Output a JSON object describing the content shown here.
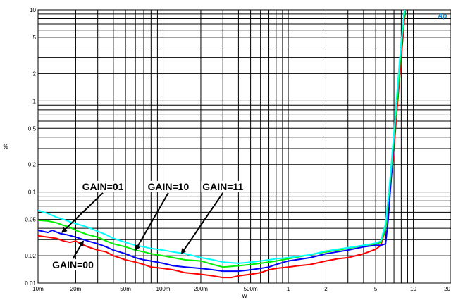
{
  "chart_data": {
    "type": "line",
    "xlabel": "W",
    "ylabel": "%",
    "x_scale": "log",
    "y_scale": "log",
    "xlim": [
      0.01,
      20
    ],
    "ylim": [
      0.01,
      10
    ],
    "grid": true,
    "x_ticks": [
      {
        "value": 0.01,
        "label": "10m"
      },
      {
        "value": 0.02,
        "label": "20m"
      },
      {
        "value": 0.05,
        "label": "50m"
      },
      {
        "value": 0.1,
        "label": "100m"
      },
      {
        "value": 0.2,
        "label": "200m"
      },
      {
        "value": 0.5,
        "label": "500m"
      },
      {
        "value": 1,
        "label": "1"
      },
      {
        "value": 2,
        "label": "2"
      },
      {
        "value": 5,
        "label": "5"
      },
      {
        "value": 10,
        "label": "10"
      },
      {
        "value": 20,
        "label": "20"
      }
    ],
    "y_ticks": [
      {
        "value": 0.01,
        "label": "0.01"
      },
      {
        "value": 0.02,
        "label": "0.02"
      },
      {
        "value": 0.05,
        "label": "0.05"
      },
      {
        "value": 0.1,
        "label": "0.1"
      },
      {
        "value": 0.2,
        "label": "0.2"
      },
      {
        "value": 0.5,
        "label": "0.5"
      },
      {
        "value": 1,
        "label": "1"
      },
      {
        "value": 2,
        "label": "2"
      },
      {
        "value": 5,
        "label": "5"
      },
      {
        "value": 10,
        "label": "10"
      }
    ],
    "series": [
      {
        "name": "GAIN=00",
        "color": "#ff0000",
        "points": [
          [
            0.01,
            0.033
          ],
          [
            0.012,
            0.032
          ],
          [
            0.014,
            0.031
          ],
          [
            0.016,
            0.029
          ],
          [
            0.018,
            0.028
          ],
          [
            0.02,
            0.029
          ],
          [
            0.022,
            0.027
          ],
          [
            0.025,
            0.025
          ],
          [
            0.03,
            0.023
          ],
          [
            0.035,
            0.022
          ],
          [
            0.04,
            0.02
          ],
          [
            0.05,
            0.018
          ],
          [
            0.06,
            0.017
          ],
          [
            0.07,
            0.016
          ],
          [
            0.08,
            0.015
          ],
          [
            0.1,
            0.0145
          ],
          [
            0.12,
            0.014
          ],
          [
            0.15,
            0.013
          ],
          [
            0.2,
            0.0125
          ],
          [
            0.25,
            0.012
          ],
          [
            0.3,
            0.0115
          ],
          [
            0.35,
            0.0115
          ],
          [
            0.4,
            0.012
          ],
          [
            0.5,
            0.0125
          ],
          [
            0.6,
            0.013
          ],
          [
            0.7,
            0.014
          ],
          [
            0.8,
            0.0145
          ],
          [
            1,
            0.015
          ],
          [
            1.2,
            0.0155
          ],
          [
            1.5,
            0.016
          ],
          [
            2,
            0.0175
          ],
          [
            2.5,
            0.0185
          ],
          [
            3,
            0.019
          ],
          [
            4,
            0.021
          ],
          [
            5,
            0.0235
          ],
          [
            5.5,
            0.026
          ],
          [
            6,
            0.04
          ],
          [
            6.5,
            0.1
          ],
          [
            7,
            0.3
          ],
          [
            7.5,
            1
          ],
          [
            8,
            3
          ],
          [
            8.5,
            8
          ],
          [
            8.8,
            12
          ]
        ]
      },
      {
        "name": "GAIN=01",
        "color": "#0000ff",
        "points": [
          [
            0.01,
            0.038
          ],
          [
            0.012,
            0.036
          ],
          [
            0.013,
            0.038
          ],
          [
            0.015,
            0.035
          ],
          [
            0.017,
            0.034
          ],
          [
            0.02,
            0.032
          ],
          [
            0.025,
            0.029
          ],
          [
            0.03,
            0.027
          ],
          [
            0.035,
            0.025
          ],
          [
            0.04,
            0.023
          ],
          [
            0.05,
            0.021
          ],
          [
            0.06,
            0.019
          ],
          [
            0.07,
            0.018
          ],
          [
            0.08,
            0.0175
          ],
          [
            0.1,
            0.0165
          ],
          [
            0.12,
            0.0155
          ],
          [
            0.15,
            0.015
          ],
          [
            0.2,
            0.0145
          ],
          [
            0.25,
            0.014
          ],
          [
            0.3,
            0.0135
          ],
          [
            0.4,
            0.0135
          ],
          [
            0.5,
            0.014
          ],
          [
            0.6,
            0.0145
          ],
          [
            0.7,
            0.015
          ],
          [
            0.8,
            0.016
          ],
          [
            1,
            0.0175
          ],
          [
            1.5,
            0.019
          ],
          [
            2,
            0.021
          ],
          [
            3,
            0.023
          ],
          [
            4,
            0.025
          ],
          [
            5,
            0.026
          ],
          [
            5.5,
            0.026
          ],
          [
            6,
            0.027
          ],
          [
            6.3,
            0.05
          ],
          [
            6.6,
            0.12
          ],
          [
            7,
            0.4
          ],
          [
            7.5,
            1.3
          ],
          [
            8,
            4
          ],
          [
            8.5,
            9
          ],
          [
            8.8,
            12
          ]
        ]
      },
      {
        "name": "GAIN=10",
        "color": "#00ee00",
        "points": [
          [
            0.01,
            0.049
          ],
          [
            0.012,
            0.048
          ],
          [
            0.014,
            0.046
          ],
          [
            0.016,
            0.043
          ],
          [
            0.018,
            0.041
          ],
          [
            0.02,
            0.038
          ],
          [
            0.025,
            0.034
          ],
          [
            0.03,
            0.032
          ],
          [
            0.035,
            0.029
          ],
          [
            0.04,
            0.027
          ],
          [
            0.05,
            0.025
          ],
          [
            0.06,
            0.023
          ],
          [
            0.07,
            0.022
          ],
          [
            0.08,
            0.021
          ],
          [
            0.1,
            0.02
          ],
          [
            0.12,
            0.019
          ],
          [
            0.15,
            0.018
          ],
          [
            0.2,
            0.0175
          ],
          [
            0.25,
            0.016
          ],
          [
            0.3,
            0.015
          ],
          [
            0.4,
            0.0155
          ],
          [
            0.5,
            0.016
          ],
          [
            0.6,
            0.0165
          ],
          [
            0.7,
            0.017
          ],
          [
            0.8,
            0.0175
          ],
          [
            1,
            0.0185
          ],
          [
            1.5,
            0.0205
          ],
          [
            2,
            0.022
          ],
          [
            3,
            0.024
          ],
          [
            4,
            0.026
          ],
          [
            5,
            0.027
          ],
          [
            5.5,
            0.028
          ],
          [
            6,
            0.04
          ],
          [
            6.5,
            0.12
          ],
          [
            7,
            0.4
          ],
          [
            7.5,
            1.2
          ],
          [
            8,
            4
          ],
          [
            8.5,
            9
          ],
          [
            8.8,
            12
          ]
        ]
      },
      {
        "name": "GAIN=11",
        "color": "#00ffff",
        "points": [
          [
            0.01,
            0.063
          ],
          [
            0.012,
            0.058
          ],
          [
            0.014,
            0.053
          ],
          [
            0.016,
            0.05
          ],
          [
            0.018,
            0.047
          ],
          [
            0.02,
            0.045
          ],
          [
            0.025,
            0.041
          ],
          [
            0.03,
            0.037
          ],
          [
            0.035,
            0.034
          ],
          [
            0.04,
            0.031
          ],
          [
            0.05,
            0.028
          ],
          [
            0.06,
            0.026
          ],
          [
            0.07,
            0.025
          ],
          [
            0.08,
            0.024
          ],
          [
            0.1,
            0.023
          ],
          [
            0.12,
            0.022
          ],
          [
            0.15,
            0.021
          ],
          [
            0.2,
            0.019
          ],
          [
            0.25,
            0.018
          ],
          [
            0.3,
            0.017
          ],
          [
            0.4,
            0.0165
          ],
          [
            0.5,
            0.017
          ],
          [
            0.6,
            0.0175
          ],
          [
            0.7,
            0.018
          ],
          [
            0.8,
            0.0185
          ],
          [
            1,
            0.019
          ],
          [
            1.5,
            0.0205
          ],
          [
            2,
            0.0225
          ],
          [
            3,
            0.0245
          ],
          [
            4,
            0.026
          ],
          [
            5,
            0.0275
          ],
          [
            5.5,
            0.029
          ],
          [
            6,
            0.045
          ],
          [
            6.5,
            0.13
          ],
          [
            7,
            0.45
          ],
          [
            7.5,
            1.5
          ],
          [
            8,
            4.5
          ],
          [
            8.5,
            10
          ],
          [
            8.8,
            12
          ]
        ]
      }
    ],
    "annotations": [
      {
        "text": "GAIN=01",
        "series": "GAIN=01",
        "text_at": [
          0.033,
          0.105
        ],
        "arrow_to": [
          0.0155,
          0.036
        ]
      },
      {
        "text": "GAIN=10",
        "series": "GAIN=10",
        "text_at": [
          0.11,
          0.105
        ],
        "arrow_to": [
          0.06,
          0.023
        ]
      },
      {
        "text": "GAIN=11",
        "series": "GAIN=11",
        "text_at": [
          0.3,
          0.105
        ],
        "arrow_to": [
          0.14,
          0.021
        ]
      },
      {
        "text": "GAIN=00",
        "series": "GAIN=00",
        "text_at": [
          0.019,
          0.0145
        ],
        "arrow_to": [
          0.023,
          0.029
        ]
      }
    ],
    "logo": "Ap"
  }
}
